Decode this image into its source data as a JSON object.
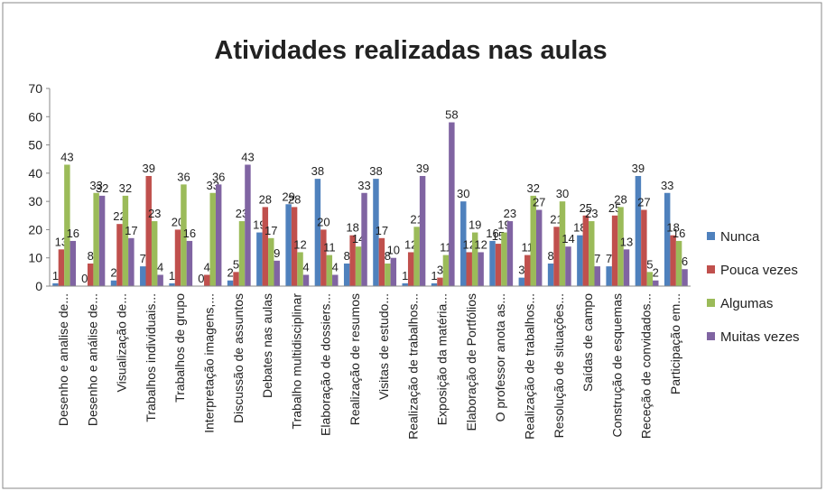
{
  "chart_data": {
    "type": "bar",
    "title": "Atividades realizadas nas aulas",
    "categories": [
      "Desenho e analise de...",
      "Desenho e análise de...",
      "Visualização de...",
      "Trabalhos individuais...",
      "Trabalhos de grupo",
      "Interpretação imagens,...",
      "Discussão de assuntos",
      "Debates nas aulas",
      "Trabalho multidisciplinar",
      "Elaboração de dossiers...",
      "Realização de resumos",
      "Visitas de estudo...",
      "Realização de trabalhos...",
      "Exposição da matéria...",
      "Elaboração de Portfólios",
      "O professor anota as...",
      "Realização de trabalhos...",
      "Resolução de situações...",
      "Saídas de campo",
      "Construção de esquemas",
      "Receção de convidados...",
      "Participação em..."
    ],
    "series": [
      {
        "name": "Nunca",
        "color": "#4f81bd",
        "values": [
          1,
          0,
          2,
          7,
          1,
          0,
          2,
          19,
          29,
          38,
          8,
          38,
          1,
          1,
          30,
          16,
          3,
          8,
          18,
          7,
          39,
          33
        ]
      },
      {
        "name": "Pouca vezes",
        "color": "#c0504d",
        "values": [
          13,
          8,
          22,
          39,
          20,
          4,
          5,
          28,
          28,
          20,
          18,
          17,
          12,
          3,
          12,
          15,
          11,
          21,
          25,
          25,
          27,
          18
        ]
      },
      {
        "name": "Algumas",
        "color": "#9bbb59",
        "values": [
          43,
          33,
          32,
          23,
          36,
          33,
          23,
          17,
          12,
          11,
          14,
          8,
          21,
          11,
          19,
          19,
          32,
          30,
          23,
          28,
          5,
          16
        ]
      },
      {
        "name": "Muitas vezes",
        "color": "#8064a2",
        "values": [
          16,
          32,
          17,
          4,
          16,
          36,
          43,
          9,
          4,
          4,
          33,
          10,
          39,
          58,
          12,
          23,
          27,
          14,
          7,
          13,
          2,
          6
        ]
      }
    ],
    "ylim": [
      0,
      70
    ],
    "yticks": [
      0,
      10,
      20,
      30,
      40,
      50,
      60,
      70
    ],
    "legend": "right"
  }
}
